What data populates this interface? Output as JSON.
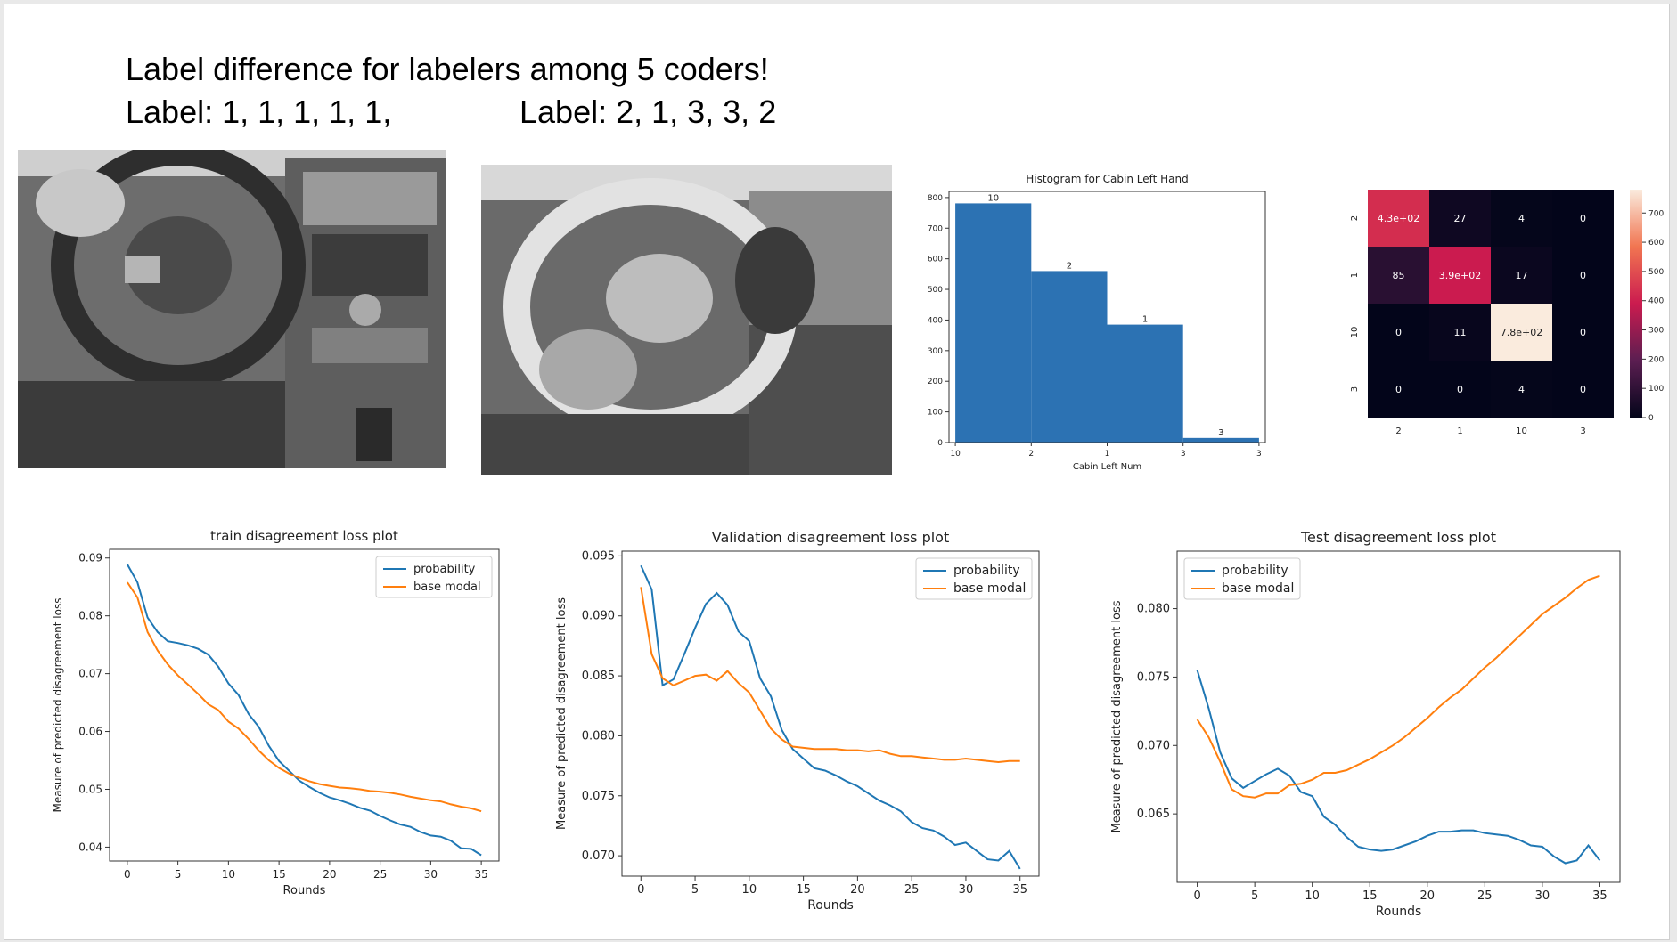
{
  "slide": {
    "title": "Label difference for labelers among 5 coders!",
    "label_left": "Label: 1, 1, 1, 1, 1,",
    "label_right": "Label: 2, 1, 3, 3, 2"
  },
  "photos": [
    {
      "name": "dashboard-photo-1",
      "tone": "#6b6b6b"
    },
    {
      "name": "dashboard-photo-2",
      "tone": "#7a7a7a"
    }
  ],
  "colors": {
    "blue": "#1f77b4",
    "orange": "#ff7f0e",
    "hist_bar": "#2c72b3"
  },
  "chart_data": [
    {
      "id": "histogram",
      "type": "bar",
      "title": "Histogram for Cabin Left Hand",
      "xlabel": "Cabin Left Num",
      "ylabel": "",
      "categories": [
        "10",
        "2",
        "1",
        "3"
      ],
      "values": [
        781,
        560,
        385,
        15
      ],
      "data_labels": [
        "10",
        "2",
        "1",
        "3"
      ],
      "ylim": [
        0,
        820
      ],
      "yticks": [
        0,
        100,
        200,
        300,
        400,
        500,
        600,
        700,
        800
      ]
    },
    {
      "id": "confusion",
      "type": "heatmap",
      "rows": [
        "2",
        "1",
        "10",
        "3"
      ],
      "cols": [
        "2",
        "1",
        "10",
        "3"
      ],
      "values": [
        [
          430,
          27,
          4,
          0
        ],
        [
          85,
          390,
          17,
          0
        ],
        [
          0,
          11,
          780,
          0
        ],
        [
          0,
          0,
          4,
          0
        ]
      ],
      "labels": [
        [
          "4.3e+02",
          "27",
          "4",
          "0"
        ],
        [
          "85",
          "3.9e+02",
          "17",
          "0"
        ],
        [
          "0",
          "11",
          "7.8e+02",
          "0"
        ],
        [
          "0",
          "0",
          "4",
          "0"
        ]
      ],
      "colorbar_ticks": [
        0,
        100,
        200,
        300,
        400,
        500,
        600,
        700
      ],
      "vmax": 780
    },
    {
      "id": "train",
      "type": "line",
      "title": "train disagreement loss plot",
      "xlabel": "Rounds",
      "ylabel": "Measure of predicted disagreement loss",
      "xlim": [
        -1.75,
        36.75
      ],
      "ylim": [
        0.0376,
        0.0915
      ],
      "xticks": [
        0,
        5,
        10,
        15,
        20,
        25,
        30,
        35
      ],
      "yticks": [
        0.04,
        0.05,
        0.06,
        0.07,
        0.08,
        0.09
      ],
      "ytick_labels": [
        "0.04",
        "0.05",
        "0.06",
        "0.07",
        "0.08",
        "0.09"
      ],
      "legend_position": "upper right",
      "series": [
        {
          "name": "probability",
          "values": [
            0.0889,
            0.0858,
            0.0797,
            0.0772,
            0.0756,
            0.0753,
            0.0749,
            0.0743,
            0.0733,
            0.0712,
            0.0683,
            0.0663,
            0.063,
            0.0608,
            0.0575,
            0.0549,
            0.0532,
            0.0515,
            0.0504,
            0.0494,
            0.0486,
            0.0481,
            0.0475,
            0.0468,
            0.0463,
            0.0454,
            0.0446,
            0.0439,
            0.0435,
            0.0426,
            0.042,
            0.0418,
            0.0411,
            0.0398,
            0.0397,
            0.0386
          ]
        },
        {
          "name": "base modal",
          "values": [
            0.0858,
            0.0832,
            0.0772,
            0.074,
            0.0716,
            0.0697,
            0.0681,
            0.0665,
            0.0647,
            0.0637,
            0.0617,
            0.0605,
            0.0587,
            0.0567,
            0.055,
            0.0537,
            0.0527,
            0.052,
            0.0514,
            0.0509,
            0.0506,
            0.0503,
            0.0502,
            0.05,
            0.0497,
            0.0496,
            0.0494,
            0.0491,
            0.0487,
            0.0484,
            0.0481,
            0.0479,
            0.0474,
            0.047,
            0.0467,
            0.0462
          ]
        }
      ]
    },
    {
      "id": "validation",
      "type": "line",
      "title": "Validation disagreement loss plot",
      "xlabel": "Rounds",
      "ylabel": "Measure of predicted disagreement loss",
      "xlim": [
        -1.75,
        36.75
      ],
      "ylim": [
        0.0683,
        0.0954
      ],
      "xticks": [
        0,
        5,
        10,
        15,
        20,
        25,
        30,
        35
      ],
      "yticks": [
        0.07,
        0.075,
        0.08,
        0.085,
        0.09,
        0.095
      ],
      "ytick_labels": [
        "0.070",
        "0.075",
        "0.080",
        "0.085",
        "0.090",
        "0.095"
      ],
      "legend_position": "upper right",
      "series": [
        {
          "name": "probability",
          "values": [
            0.0942,
            0.0922,
            0.0842,
            0.0847,
            0.0868,
            0.089,
            0.091,
            0.0919,
            0.0909,
            0.0887,
            0.0879,
            0.0848,
            0.0833,
            0.0805,
            0.0789,
            0.0781,
            0.0773,
            0.0771,
            0.0767,
            0.0762,
            0.0758,
            0.0752,
            0.0746,
            0.0742,
            0.0737,
            0.0728,
            0.0723,
            0.0721,
            0.0716,
            0.0709,
            0.0711,
            0.0704,
            0.0697,
            0.0696,
            0.0704,
            0.0689
          ]
        },
        {
          "name": "base modal",
          "values": [
            0.0924,
            0.0868,
            0.0848,
            0.0842,
            0.0846,
            0.085,
            0.0851,
            0.0846,
            0.0854,
            0.0844,
            0.0836,
            0.0821,
            0.0806,
            0.0797,
            0.0791,
            0.079,
            0.0789,
            0.0789,
            0.0789,
            0.0788,
            0.0788,
            0.0787,
            0.0788,
            0.0785,
            0.0783,
            0.0783,
            0.0782,
            0.0781,
            0.078,
            0.078,
            0.0781,
            0.078,
            0.0779,
            0.0778,
            0.0779,
            0.0779
          ]
        }
      ]
    },
    {
      "id": "test",
      "type": "line",
      "title": "Test disagreement loss plot",
      "xlabel": "Rounds",
      "ylabel": "Measure of predicted disagreement loss",
      "xlim": [
        -1.75,
        36.75
      ],
      "ylim": [
        0.06,
        0.0842
      ],
      "xticks": [
        0,
        5,
        10,
        15,
        20,
        25,
        30,
        35
      ],
      "yticks": [
        0.065,
        0.07,
        0.075,
        0.08
      ],
      "ytick_labels": [
        "0.065",
        "0.070",
        "0.075",
        "0.080"
      ],
      "legend_position": "upper left",
      "series": [
        {
          "name": "probability",
          "values": [
            0.0755,
            0.0727,
            0.0695,
            0.0676,
            0.0669,
            0.0674,
            0.0679,
            0.0683,
            0.0678,
            0.0666,
            0.0663,
            0.0648,
            0.0642,
            0.0633,
            0.0626,
            0.0624,
            0.0623,
            0.0624,
            0.0627,
            0.063,
            0.0634,
            0.0637,
            0.0637,
            0.0638,
            0.0638,
            0.0636,
            0.0635,
            0.0634,
            0.0631,
            0.0627,
            0.0626,
            0.0619,
            0.0614,
            0.0616,
            0.0627,
            0.0616
          ]
        },
        {
          "name": "base modal",
          "values": [
            0.0719,
            0.0706,
            0.0688,
            0.0668,
            0.0663,
            0.0662,
            0.0665,
            0.0665,
            0.0671,
            0.0672,
            0.0675,
            0.068,
            0.068,
            0.0682,
            0.0686,
            0.069,
            0.0695,
            0.07,
            0.0706,
            0.0713,
            0.072,
            0.0728,
            0.0735,
            0.0741,
            0.0749,
            0.0757,
            0.0764,
            0.0772,
            0.078,
            0.0788,
            0.0796,
            0.0802,
            0.0808,
            0.0815,
            0.0821,
            0.0824
          ]
        }
      ]
    }
  ]
}
